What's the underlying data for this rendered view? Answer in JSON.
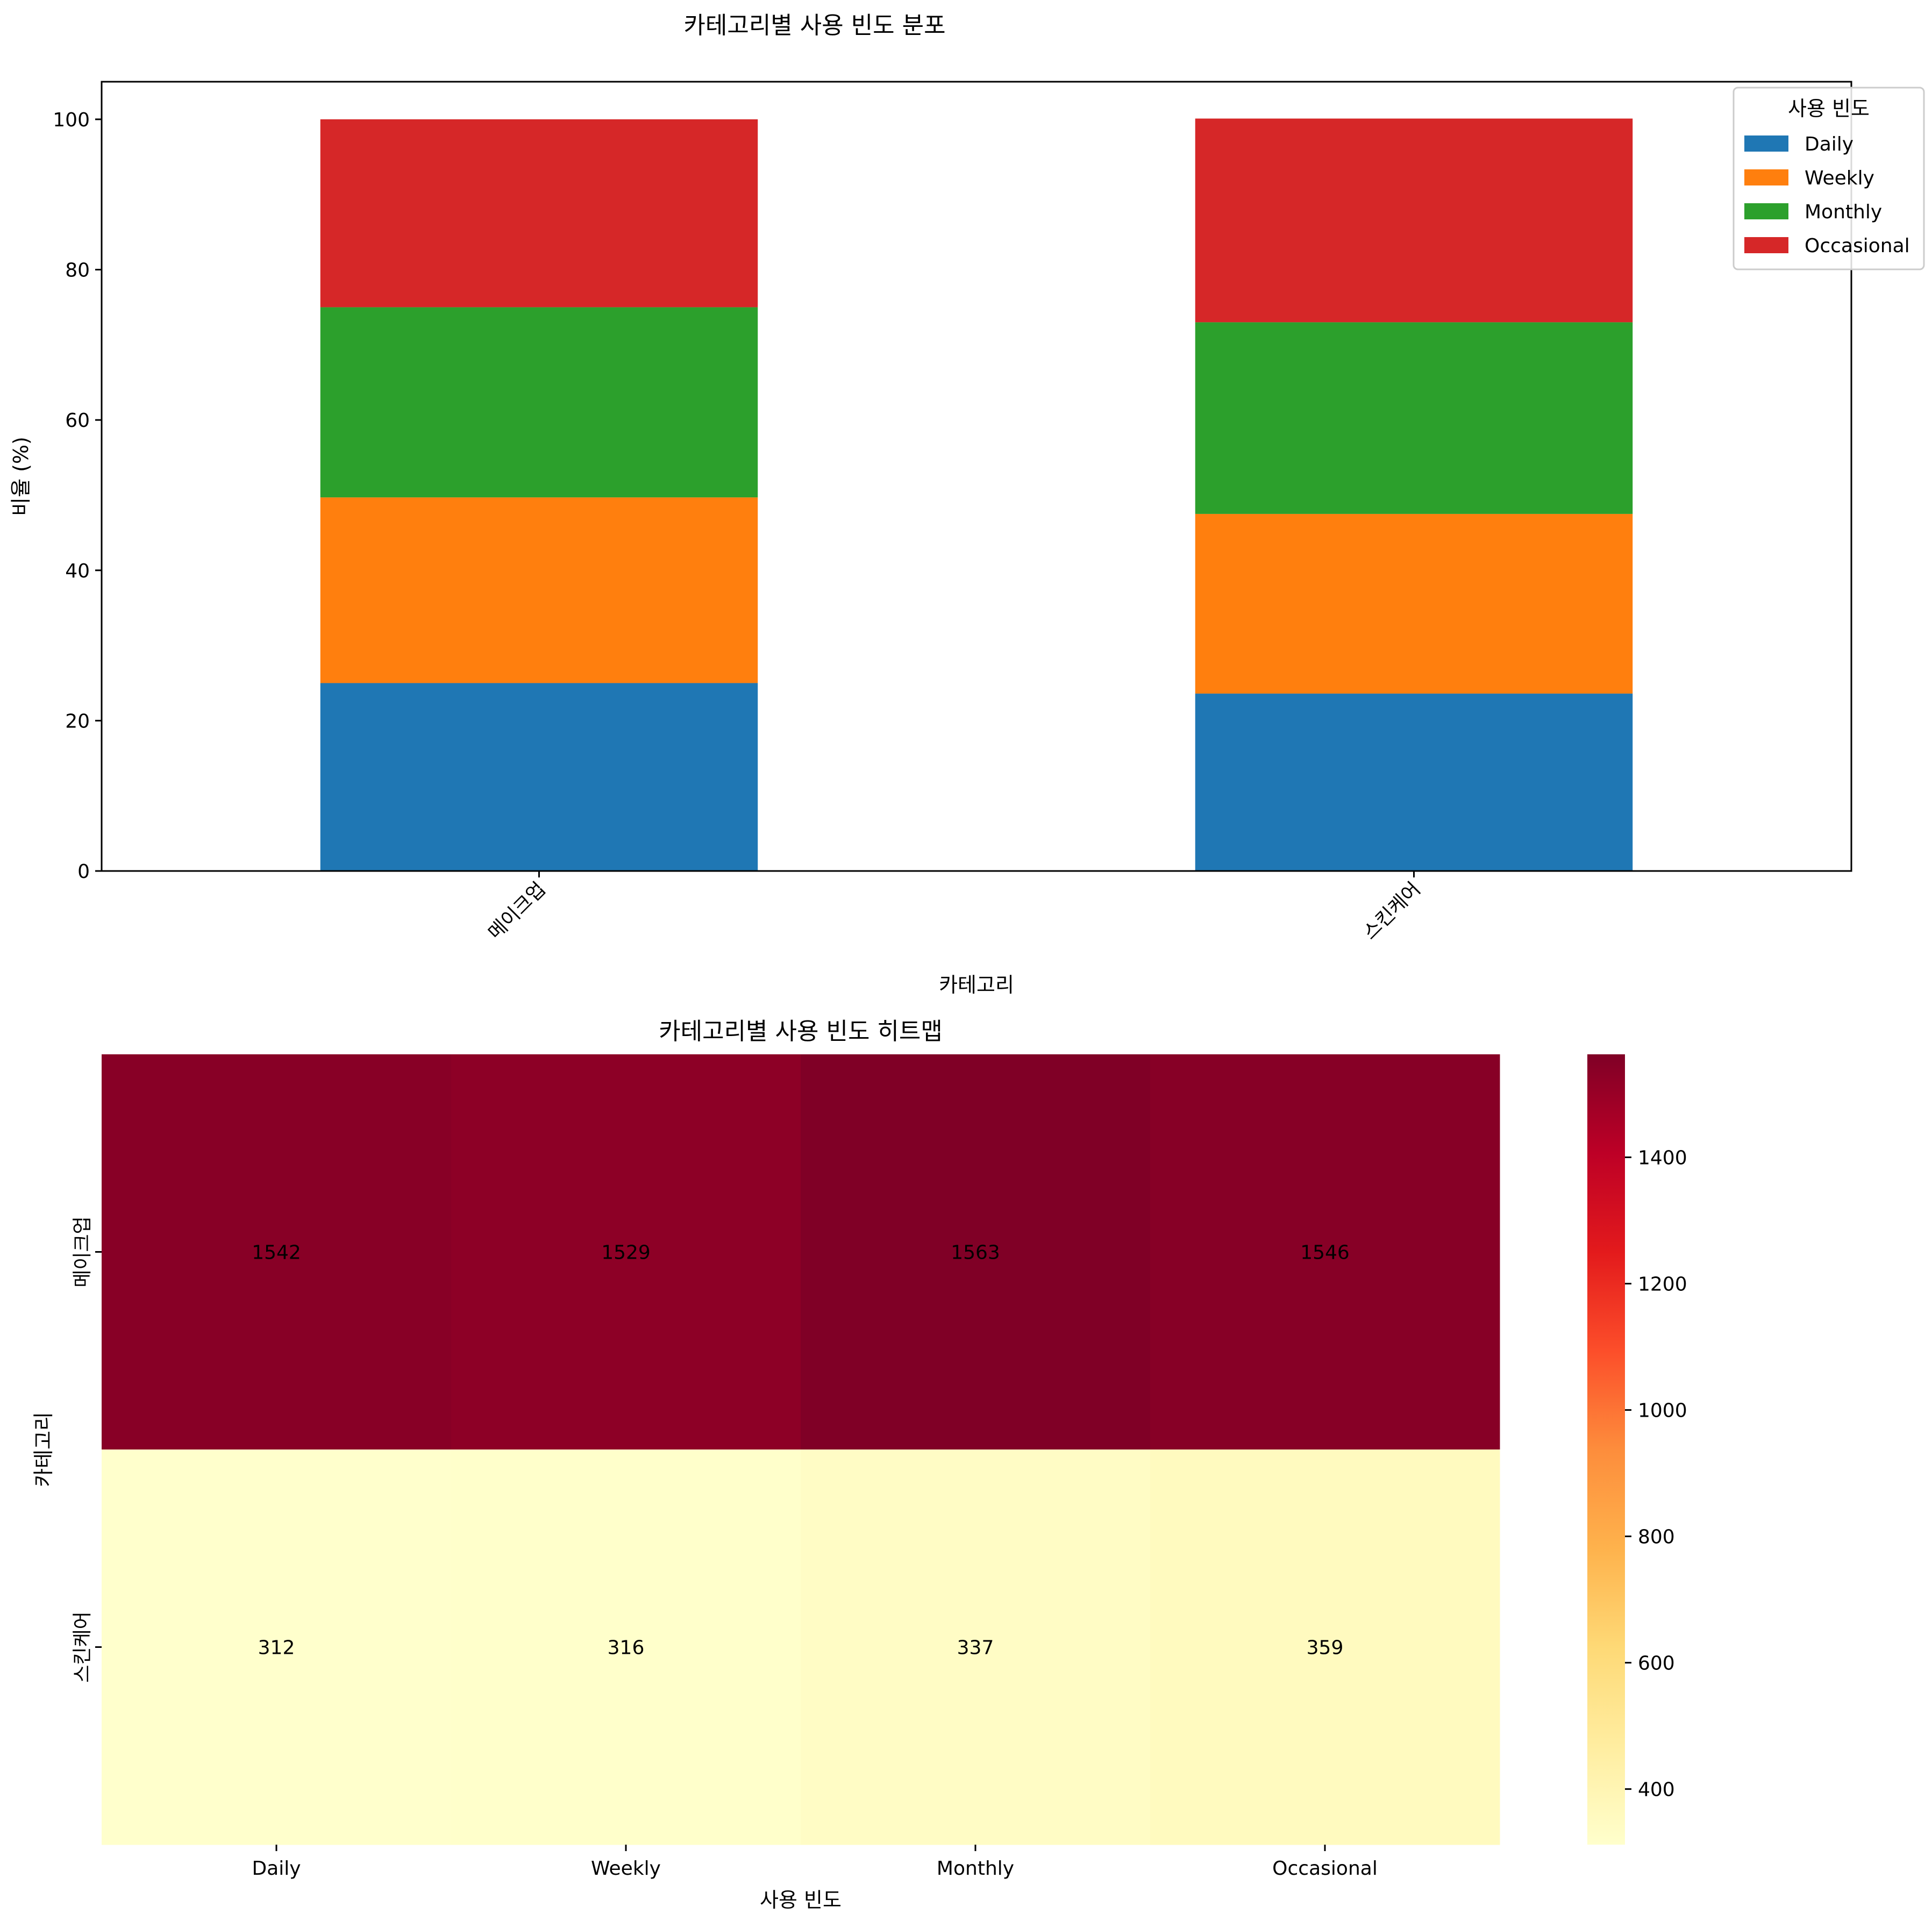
{
  "figure": {
    "suptitle": "카테고리별 사용 빈도 분포"
  },
  "colors": {
    "Daily": "#1f77b4",
    "Weekly": "#ff7f0e",
    "Monthly": "#2ca02c",
    "Occasional": "#d62728"
  },
  "chart_data": [
    {
      "type": "bar",
      "stacked": true,
      "title": "",
      "xlabel": "카테고리",
      "ylabel": "비율 (%)",
      "categories": [
        "메이크업",
        "스킨케어"
      ],
      "ylim": [
        0,
        105
      ],
      "yticks": [
        0,
        20,
        40,
        60,
        80,
        100
      ],
      "grid": false,
      "legend": {
        "title": "사용 빈도",
        "placement": "top-right"
      },
      "series": [
        {
          "name": "Daily",
          "values": [
            25.0,
            23.6
          ]
        },
        {
          "name": "Weekly",
          "values": [
            24.7,
            23.9
          ]
        },
        {
          "name": "Monthly",
          "values": [
            25.3,
            25.5
          ]
        },
        {
          "name": "Occasional",
          "values": [
            25.0,
            27.1
          ]
        }
      ]
    },
    {
      "type": "heatmap",
      "title": "카테고리별 사용 빈도 히트맵",
      "xlabel": "사용 빈도",
      "ylabel": "카테고리",
      "x": [
        "Daily",
        "Weekly",
        "Monthly",
        "Occasional"
      ],
      "y": [
        "메이크업",
        "스킨케어"
      ],
      "values": [
        [
          1542,
          1529,
          1563,
          1546
        ],
        [
          312,
          316,
          337,
          359
        ]
      ],
      "colormap": "YlOrRd",
      "colorbar": {
        "range": [
          312,
          1563
        ],
        "ticks": [
          400,
          600,
          800,
          1000,
          1200,
          1400
        ]
      }
    }
  ]
}
